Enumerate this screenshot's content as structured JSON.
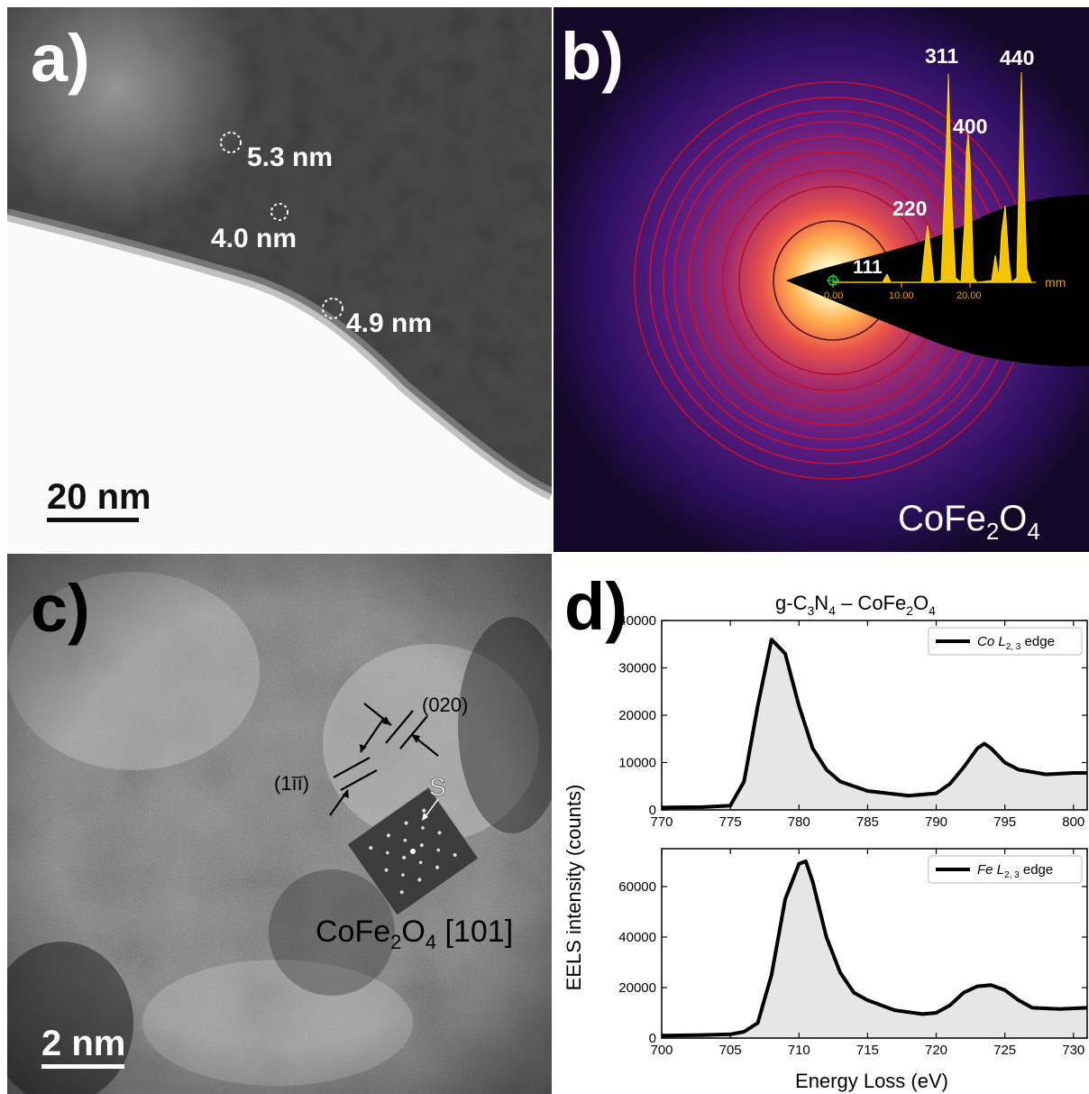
{
  "panel_a": {
    "label": "a)",
    "particles": [
      "5.3 nm",
      "4.0 nm",
      "4.9 nm"
    ],
    "scale_bar": "20 nm"
  },
  "panel_b": {
    "label": "b)",
    "material": "CoFe",
    "material_sub1": "2",
    "material_mid": "O",
    "material_sub2": "4",
    "unit": "mm",
    "axis_ticks": [
      "0.00",
      "10.00",
      "20.00"
    ],
    "peaks": [
      "111",
      "220",
      "311",
      "400",
      "440"
    ]
  },
  "panel_c": {
    "label": "c)",
    "plane1": "(020)",
    "plane2": "(1īī)",
    "marker": "S",
    "zone_prefix": "CoFe",
    "zone_sub1": "2",
    "zone_mid": "O",
    "zone_sub2": "4",
    "zone_suffix": " [101]",
    "scale_bar": "2 nm"
  },
  "panel_d": {
    "label": "d)",
    "title_parts": [
      "g-C",
      "3",
      "N",
      "4",
      " – CoFe",
      "2",
      "O",
      "4"
    ],
    "ylabel": "EELS intensity (counts)",
    "xlabel": "Energy Loss (eV)"
  },
  "chart_data": [
    {
      "type": "area",
      "title": "g-C3N4 – CoFe2O4",
      "legend": "Co L2,3 edge",
      "legend_parts": [
        "Co L",
        "2, 3",
        " edge"
      ],
      "xlim": [
        770,
        801
      ],
      "ylim": [
        0,
        40000
      ],
      "xticks": [
        770,
        775,
        780,
        785,
        790,
        795,
        800
      ],
      "yticks": [
        0,
        10000,
        20000,
        30000,
        40000
      ],
      "x": [
        770,
        773,
        775,
        776,
        777,
        778,
        779,
        780,
        781,
        782,
        783,
        785,
        788,
        790,
        791,
        792,
        793,
        793.5,
        794,
        795,
        796,
        798,
        800,
        801
      ],
      "y": [
        500,
        600,
        900,
        6000,
        22000,
        36000,
        33000,
        22000,
        13000,
        8500,
        6000,
        4000,
        3000,
        3500,
        5500,
        9000,
        13000,
        14000,
        13000,
        10000,
        8500,
        7500,
        7800,
        7800
      ]
    },
    {
      "type": "area",
      "legend": "Fe L2,3 edge",
      "legend_parts": [
        "Fe L",
        "2, 3",
        " edge"
      ],
      "xlabel": "Energy Loss (eV)",
      "ylabel": "EELS intensity (counts)",
      "xlim": [
        700,
        731
      ],
      "ylim": [
        0,
        75000
      ],
      "xticks": [
        700,
        705,
        710,
        715,
        720,
        725,
        730
      ],
      "yticks": [
        0,
        20000,
        40000,
        60000
      ],
      "x": [
        700,
        703,
        705,
        706,
        707,
        708,
        709,
        710,
        710.5,
        711,
        712,
        713,
        714,
        715,
        717,
        719,
        720,
        721,
        722,
        723,
        724,
        725,
        726,
        727,
        729,
        731
      ],
      "y": [
        1000,
        1200,
        1500,
        2500,
        6000,
        25000,
        55000,
        69000,
        70000,
        62000,
        40000,
        26000,
        18000,
        15000,
        11000,
        9500,
        10000,
        13000,
        18000,
        20500,
        21000,
        19000,
        15000,
        12000,
        11500,
        12000
      ]
    }
  ]
}
